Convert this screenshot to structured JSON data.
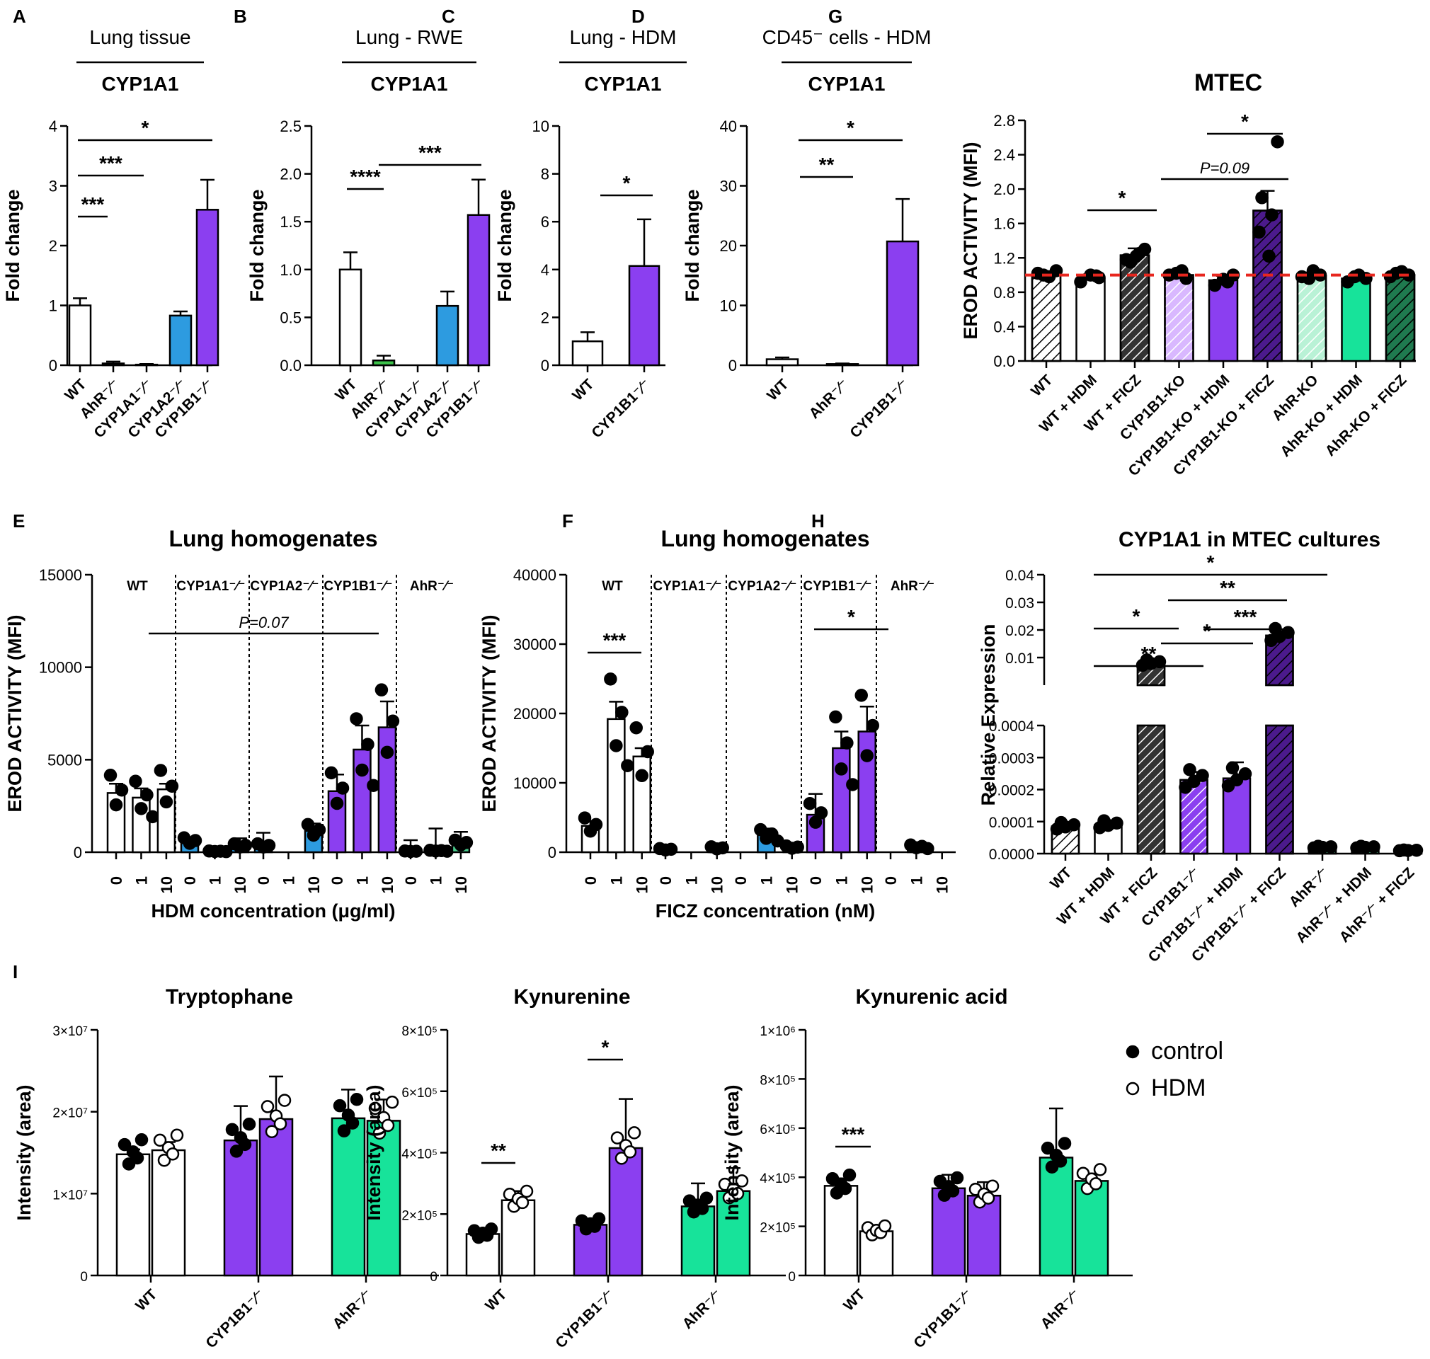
{
  "figure": {
    "panel_letters": [
      "A",
      "B",
      "C",
      "D",
      "G",
      "E",
      "F",
      "H",
      "I"
    ],
    "legend": {
      "control": "control",
      "hdm": "HDM"
    }
  },
  "colors": {
    "wt": "#ffffff",
    "cyp1a2": "#2d9be0",
    "cyp1b1": "#8b3ff0",
    "ahr": "#17e39a",
    "ahr_b": "#49c98b",
    "ahr_light": "#b9f2d6",
    "dark": "#333333",
    "cyp1b1_dark": "#4b1a8c",
    "ahr_dark": "#1f7a4f",
    "cyp1b1_light": "#d9b8ff",
    "green_small": "#3cc24a",
    "red_dash": "#e8261e"
  },
  "chart_data": [
    {
      "id": "A",
      "type": "bar",
      "title": "Lung tissue",
      "subtitle": "CYP1A1",
      "ylabel": "Fold change",
      "ylim": [
        0,
        4
      ],
      "yticks": [
        "0",
        "1",
        "2",
        "3",
        "4"
      ],
      "categories": [
        "WT",
        "AhR-/-",
        "CYP1A1-/-",
        "CYP1A2-/-",
        "CYP1B1-/-"
      ],
      "values": [
        1.0,
        0.03,
        0.01,
        0.83,
        2.6
      ],
      "errors": [
        0.12,
        0.03,
        0.01,
        0.07,
        0.5
      ],
      "sig": [
        {
          "label": "***"
        },
        {
          "label": "***"
        },
        {
          "label": "*"
        }
      ]
    },
    {
      "id": "B",
      "type": "bar",
      "title": "Lung - RWE",
      "subtitle": "CYP1A1",
      "ylabel": "Fold change",
      "ylim": [
        0,
        2.5
      ],
      "yticks": [
        "0.0",
        "0.5",
        "1.0",
        "1.5",
        "2.0",
        "2.5"
      ],
      "categories": [
        "WT",
        "AhR-/-",
        "CYP1A1-/-",
        "CYP1A2-/-",
        "CYP1B1-/-"
      ],
      "values": [
        1.0,
        0.05,
        0.0,
        0.62,
        1.57
      ],
      "errors": [
        0.18,
        0.05,
        0.0,
        0.15,
        0.37
      ],
      "sig": [
        {
          "label": "****"
        },
        {
          "label": "***"
        }
      ]
    },
    {
      "id": "C",
      "type": "bar",
      "title": "Lung - HDM",
      "subtitle": "CYP1A1",
      "ylabel": "Fold change",
      "ylim": [
        0,
        10
      ],
      "yticks": [
        "0",
        "2",
        "4",
        "6",
        "8",
        "10"
      ],
      "categories": [
        "WT",
        "CYP1B1-/-"
      ],
      "values": [
        1.0,
        4.15
      ],
      "errors": [
        0.38,
        1.95
      ],
      "sig": [
        {
          "label": "*"
        }
      ]
    },
    {
      "id": "D",
      "type": "bar",
      "title": "CD45⁻ cells - HDM",
      "subtitle": "CYP1A1",
      "ylabel": "Fold change",
      "ylim": [
        0,
        40
      ],
      "yticks": [
        "0",
        "10",
        "20",
        "30",
        "40"
      ],
      "categories": [
        "WT",
        "AhR-/-",
        "CYP1B1-/-"
      ],
      "values": [
        1.0,
        0.2,
        20.7
      ],
      "errors": [
        0.3,
        0.1,
        7.1
      ],
      "sig": [
        {
          "label": "**"
        },
        {
          "label": "*"
        }
      ]
    },
    {
      "id": "G",
      "type": "bar",
      "title": "MTEC",
      "ylabel": "EROD ACTIVITY (MFI)",
      "ylim": [
        0,
        2.8
      ],
      "yticks": [
        "0.0",
        "0.4",
        "0.8",
        "1.2",
        "1.6",
        "2.0",
        "2.4",
        "2.8"
      ],
      "categories": [
        "WT",
        "WT + HDM",
        "WT + FICZ",
        "CYP1B1-KO",
        "CYP1B1-KO + HDM",
        "CYP1B1-KO + FICZ",
        "AhR-KO",
        "AhR-KO + HDM",
        "AhR-KO + FICZ"
      ],
      "values": [
        1.0,
        0.96,
        1.23,
        1.0,
        0.94,
        1.75,
        0.99,
        0.96,
        1.0
      ],
      "errors": [
        0.04,
        0.05,
        0.08,
        0.04,
        0.05,
        0.23,
        0.04,
        0.05,
        0.03
      ],
      "reference_line": 1.0,
      "sig": [
        {
          "label": "*"
        },
        {
          "label": "P=0.09"
        },
        {
          "label": "*"
        }
      ]
    },
    {
      "id": "E",
      "type": "bar",
      "title": "Lung homogenates",
      "ylabel": "EROD ACTIVITY (MFI)",
      "xlabel": "HDM concentration (μg/ml)",
      "ylim": [
        0,
        15000
      ],
      "yticks": [
        "0",
        "5000",
        "10000",
        "15000"
      ],
      "groups": [
        "WT",
        "CYP1A1-/-",
        "CYP1A2-/-",
        "CYP1B1-/-",
        "AhR-/-"
      ],
      "doses": [
        "0",
        "1",
        "10"
      ],
      "series_values": [
        [
          3200,
          2950,
          3400
        ],
        [
          600,
          50,
          350
        ],
        [
          350,
          0,
          1150
        ],
        [
          3300,
          5550,
          6750
        ],
        [
          50,
          80,
          500
        ]
      ],
      "series_errors": [
        [
          500,
          500,
          300
        ],
        [
          200,
          80,
          400
        ],
        [
          700,
          0,
          400
        ],
        [
          900,
          1300,
          1400
        ],
        [
          600,
          1200,
          600
        ]
      ],
      "sig": [
        {
          "label": "P=0.07"
        }
      ]
    },
    {
      "id": "F",
      "type": "bar",
      "title": "Lung homogenates",
      "ylabel": "EROD ACTIVITY (MFI)",
      "xlabel": "FICZ concentration (nM)",
      "ylim": [
        0,
        40000
      ],
      "yticks": [
        "0",
        "10000",
        "20000",
        "30000",
        "40000"
      ],
      "groups": [
        "WT",
        "CYP1A1-/-",
        "CYP1A2-/-",
        "CYP1B1-/-",
        "AhR-/-"
      ],
      "doses": [
        "0",
        "1",
        "10"
      ],
      "series_values": [
        [
          3800,
          19200,
          13800
        ],
        [
          400,
          0,
          600
        ],
        [
          0,
          2500,
          700
        ],
        [
          5400,
          15000,
          17400
        ],
        [
          0,
          800,
          0
        ]
      ],
      "series_errors": [
        [
          700,
          2500,
          1200
        ],
        [
          300,
          0,
          400
        ],
        [
          0,
          900,
          300
        ],
        [
          3000,
          2400,
          3600
        ],
        [
          0,
          600,
          0
        ]
      ],
      "sig": [
        {
          "label": "***"
        },
        {
          "label": "*"
        }
      ]
    },
    {
      "id": "H",
      "type": "bar",
      "title": "CYP1A1 in MTEC cultures",
      "ylabel": "Relative Expression",
      "broken_axis": true,
      "yticks_upper": [
        "0.01",
        "0.02",
        "0.03",
        "0.04"
      ],
      "yticks_lower": [
        "0.0000",
        "0.0001",
        "0.0002",
        "0.0003",
        "0.0004"
      ],
      "categories": [
        "WT",
        "WT + HDM",
        "WT + FICZ",
        "CYP1B1-/-",
        "CYP1B1-/- + HDM",
        "CYP1B1-/- + FICZ",
        "AhR-/-",
        "AhR-/- + HDM",
        "AhR-/- + FICZ"
      ],
      "values": [
        8.5e-05,
        9e-05,
        0.008,
        0.00023,
        0.000235,
        0.018,
        2e-05,
        2e-05,
        1e-05
      ],
      "errors": [
        1e-05,
        1e-05,
        0.0008,
        2.5e-05,
        5e-05,
        0.0015,
        1e-05,
        1e-05,
        5e-06
      ],
      "sig": [
        {
          "label": "*"
        },
        {
          "label": "**"
        },
        {
          "label": "***"
        },
        {
          "label": "*"
        },
        {
          "label": "*"
        },
        {
          "label": "**"
        }
      ]
    },
    {
      "id": "I1",
      "type": "bar",
      "title": "Tryptophane",
      "ylabel": "Intensity (area)",
      "yticks": [
        "0",
        "1×10⁷",
        "2×10⁷",
        "3×10⁷"
      ],
      "ylim": [
        0,
        30000000
      ],
      "groups": [
        "WT",
        "CYP1B1-/-",
        "AhR-/-"
      ],
      "conditions": [
        "control",
        "HDM"
      ],
      "series_values": [
        [
          14800000,
          15300000
        ],
        [
          16500000,
          19100000
        ],
        [
          19200000,
          18900000
        ]
      ],
      "series_errors": [
        [
          600000,
          1000000
        ],
        [
          4200000,
          5200000
        ],
        [
          3500000,
          2600000
        ]
      ],
      "sig": []
    },
    {
      "id": "I2",
      "type": "bar",
      "title": "Kynurenine",
      "ylabel": "Intensity (area)",
      "yticks": [
        "0",
        "2×10⁵",
        "4×10⁵",
        "6×10⁵",
        "8×10⁵"
      ],
      "ylim": [
        0,
        800000
      ],
      "groups": [
        "WT",
        "CYP1B1-/-",
        "AhR-/-"
      ],
      "conditions": [
        "control",
        "HDM"
      ],
      "series_values": [
        [
          135000,
          245000
        ],
        [
          165000,
          415000
        ],
        [
          225000,
          275000
        ]
      ],
      "series_errors": [
        [
          5000,
          30000
        ],
        [
          20000,
          160000
        ],
        [
          75000,
          75000
        ]
      ],
      "sig": [
        {
          "label": "**"
        },
        {
          "label": "*"
        }
      ]
    },
    {
      "id": "I3",
      "type": "bar",
      "title": "Kynurenic acid",
      "ylabel": "Intensity (area)",
      "yticks": [
        "0",
        "2×10⁵",
        "4×10⁵",
        "6×10⁵",
        "8×10⁵",
        "1×10⁶"
      ],
      "ylim": [
        0,
        1000000
      ],
      "groups": [
        "WT",
        "CYP1B1-/-",
        "AhR-/-"
      ],
      "conditions": [
        "control",
        "HDM"
      ],
      "series_values": [
        [
          365000,
          180000
        ],
        [
          355000,
          325000
        ],
        [
          480000,
          385000
        ]
      ],
      "series_errors": [
        [
          30000,
          25000
        ],
        [
          55000,
          55000
        ],
        [
          200000,
          30000
        ]
      ],
      "sig": [
        {
          "label": "***"
        }
      ]
    }
  ]
}
